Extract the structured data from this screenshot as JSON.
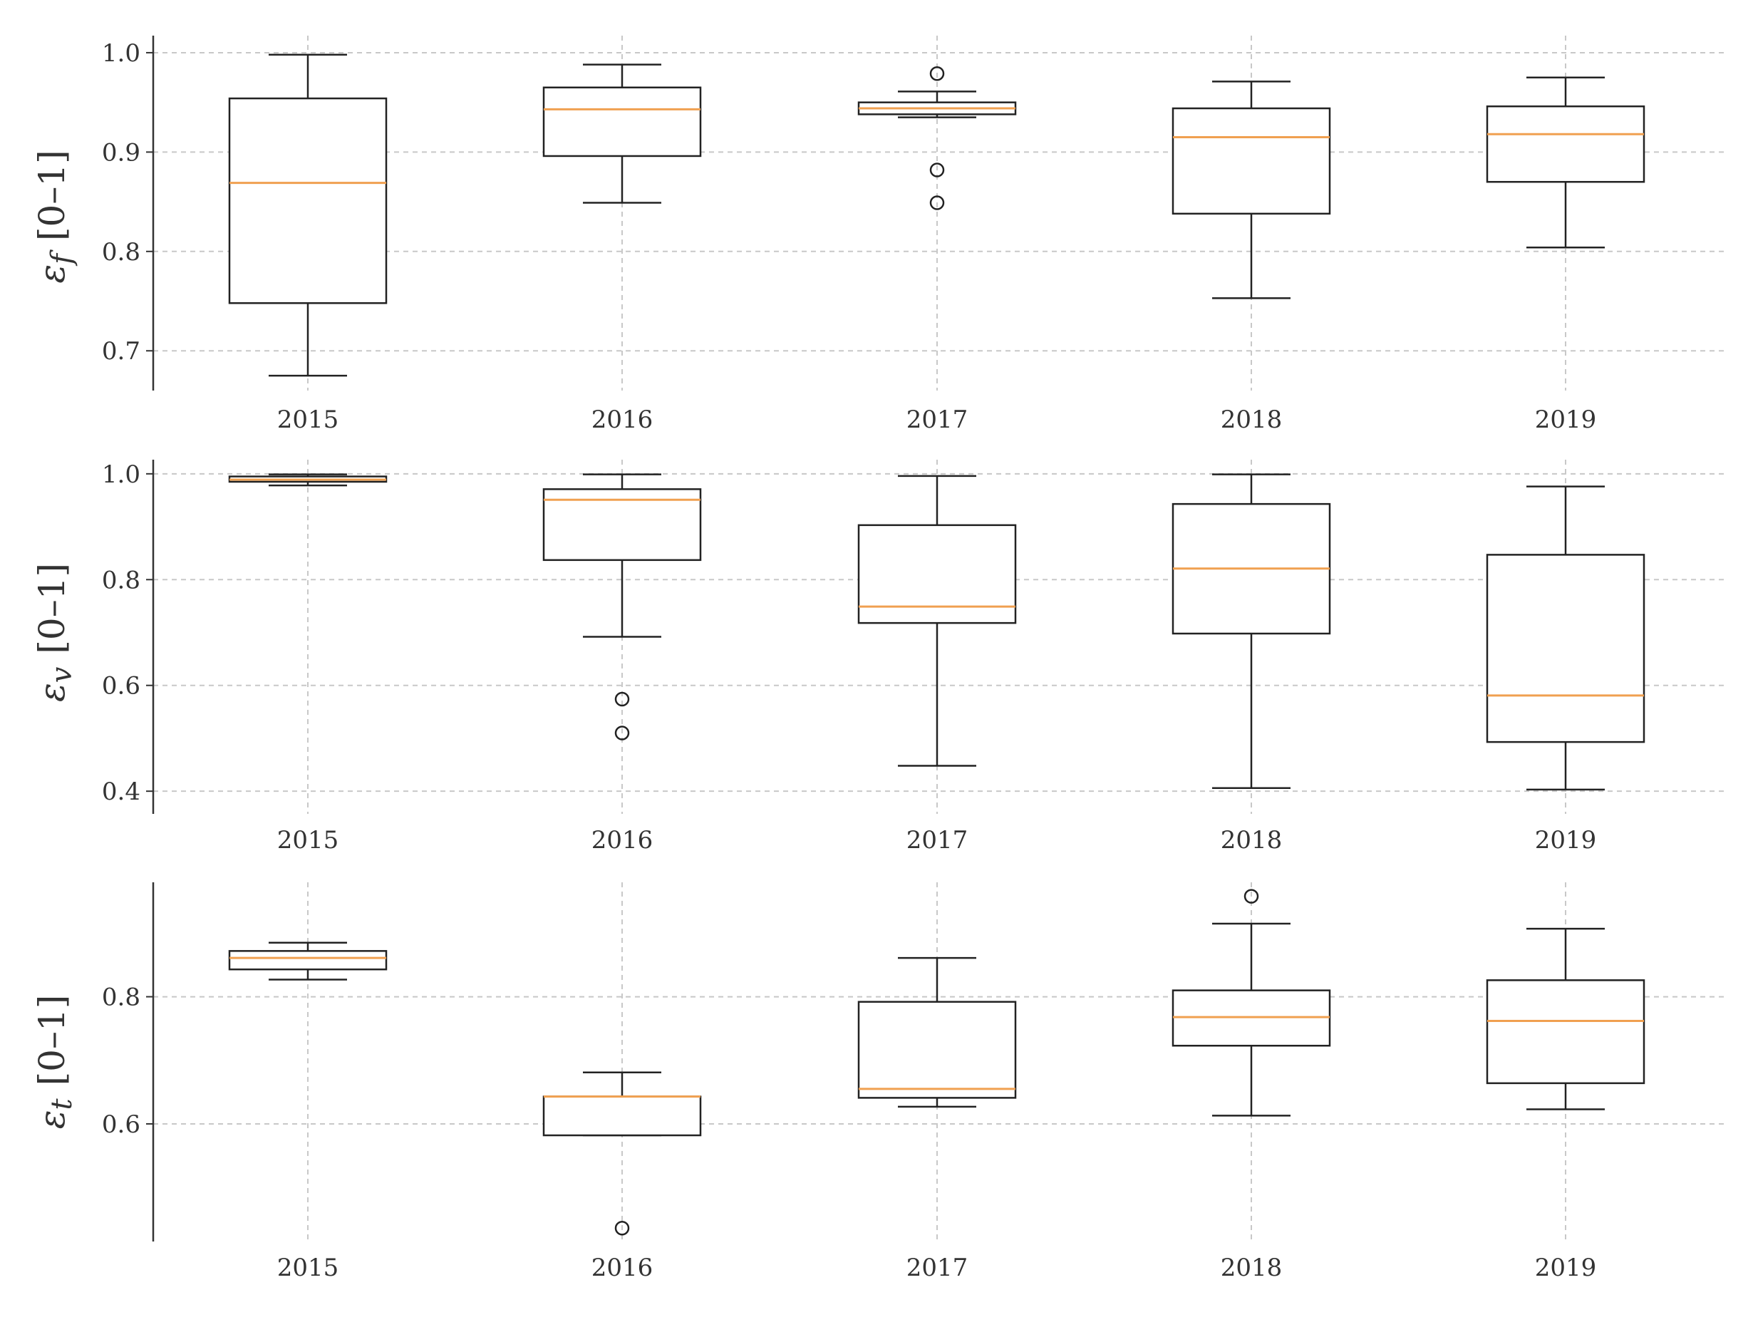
{
  "chart_data": [
    {
      "type": "box",
      "ylabel": {
        "symbol": "ε",
        "subscript": "f",
        "range": "[0–1]"
      },
      "ylim": [
        0.66,
        1.01
      ],
      "yticks": [
        "0.7",
        "0.8",
        "0.9",
        "1.0"
      ],
      "categories": [
        "2015",
        "2016",
        "2017",
        "2018",
        "2019"
      ],
      "grid": true,
      "boxes": [
        {
          "whislo": 0.675,
          "q1": 0.748,
          "med": 0.869,
          "q3": 0.954,
          "whishi": 0.998,
          "fliers": []
        },
        {
          "whislo": 0.849,
          "q1": 0.896,
          "med": 0.943,
          "q3": 0.965,
          "whishi": 0.988,
          "fliers": []
        },
        {
          "whislo": 0.935,
          "q1": 0.938,
          "med": 0.944,
          "q3": 0.95,
          "whishi": 0.961,
          "fliers": [
            0.979,
            0.882,
            0.849
          ]
        },
        {
          "whislo": 0.753,
          "q1": 0.838,
          "med": 0.915,
          "q3": 0.944,
          "whishi": 0.971,
          "fliers": []
        },
        {
          "whislo": 0.804,
          "q1": 0.87,
          "med": 0.918,
          "q3": 0.946,
          "whishi": 0.975,
          "fliers": []
        }
      ]
    },
    {
      "type": "box",
      "ylabel": {
        "symbol": "ε",
        "subscript": "v",
        "range": "[0–1]"
      },
      "ylim": [
        0.38,
        1.02
      ],
      "yticks": [
        "0.4",
        "0.6",
        "0.8",
        "1.0"
      ],
      "categories": [
        "2015",
        "2016",
        "2017",
        "2018",
        "2019"
      ],
      "grid": true,
      "boxes": [
        {
          "whislo": 0.978,
          "q1": 0.985,
          "med": 0.989,
          "q3": 0.995,
          "whishi": 0.999,
          "fliers": []
        },
        {
          "whislo": 0.692,
          "q1": 0.837,
          "med": 0.951,
          "q3": 0.971,
          "whishi": 0.999,
          "fliers": [
            0.574,
            0.51
          ]
        },
        {
          "whislo": 0.448,
          "q1": 0.718,
          "med": 0.749,
          "q3": 0.903,
          "whishi": 0.996,
          "fliers": []
        },
        {
          "whislo": 0.406,
          "q1": 0.698,
          "med": 0.821,
          "q3": 0.943,
          "whishi": 0.999,
          "fliers": []
        },
        {
          "whislo": 0.403,
          "q1": 0.493,
          "med": 0.581,
          "q3": 0.847,
          "whishi": 0.976,
          "fliers": []
        }
      ]
    },
    {
      "type": "box",
      "ylabel": {
        "symbol": "ε",
        "subscript": "t",
        "range": "[0–1]"
      },
      "ylim": [
        0.415,
        0.98
      ],
      "yticks": [
        "0.6",
        "0.8"
      ],
      "categories": [
        "2015",
        "2016",
        "2017",
        "2018",
        "2019"
      ],
      "grid": true,
      "boxes": [
        {
          "whislo": 0.827,
          "q1": 0.843,
          "med": 0.861,
          "q3": 0.872,
          "whishi": 0.885,
          "fliers": []
        },
        {
          "whislo": 0.582,
          "q1": 0.582,
          "med": 0.643,
          "q3": 0.643,
          "whishi": 0.681,
          "fliers": [
            0.436
          ]
        },
        {
          "whislo": 0.627,
          "q1": 0.641,
          "med": 0.655,
          "q3": 0.792,
          "whishi": 0.861,
          "fliers": []
        },
        {
          "whislo": 0.613,
          "q1": 0.723,
          "med": 0.768,
          "q3": 0.81,
          "whishi": 0.915,
          "fliers": [
            0.958
          ]
        },
        {
          "whislo": 0.623,
          "q1": 0.664,
          "med": 0.762,
          "q3": 0.826,
          "whishi": 0.907,
          "fliers": []
        }
      ]
    }
  ]
}
